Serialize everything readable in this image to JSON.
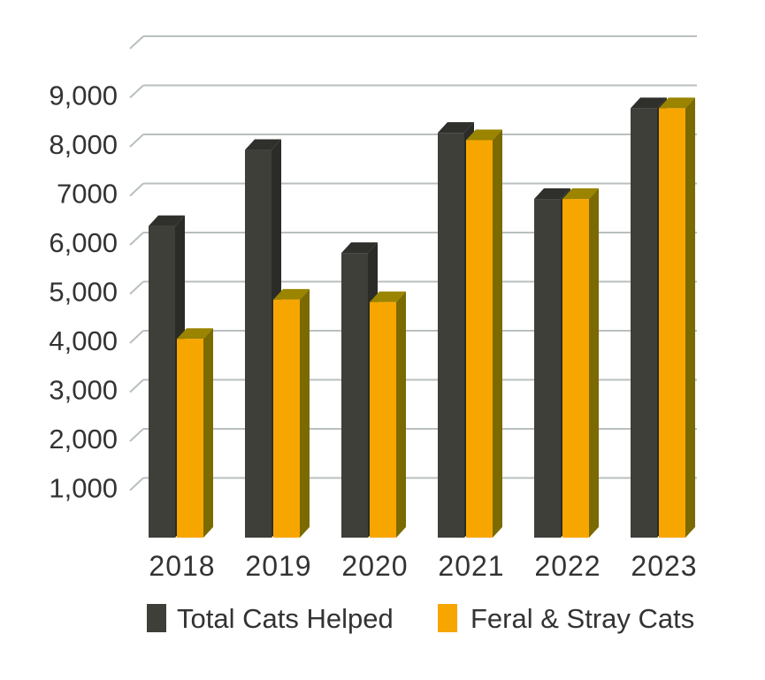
{
  "chart_data": {
    "type": "bar",
    "categories": [
      "2018",
      "2019",
      "2020",
      "2021",
      "2022",
      "2023"
    ],
    "series": [
      {
        "name": "Total Cats Helped",
        "values": [
          6350,
          7900,
          5800,
          8250,
          6900,
          8750
        ],
        "color": "#3f3f3a"
      },
      {
        "name": "Feral & Stray Cats",
        "values": [
          4050,
          4850,
          4800,
          8100,
          6900,
          8750
        ],
        "color": "#f7a600"
      }
    ],
    "y_ticks": [
      "1,000",
      "2,000",
      "3,000",
      "4,000",
      "5,000",
      "6,000",
      "7000",
      "8,000",
      "9,000"
    ],
    "ylim": [
      0,
      9000
    ],
    "grid": true,
    "legend_position": "bottom",
    "style": "3d-bar"
  }
}
